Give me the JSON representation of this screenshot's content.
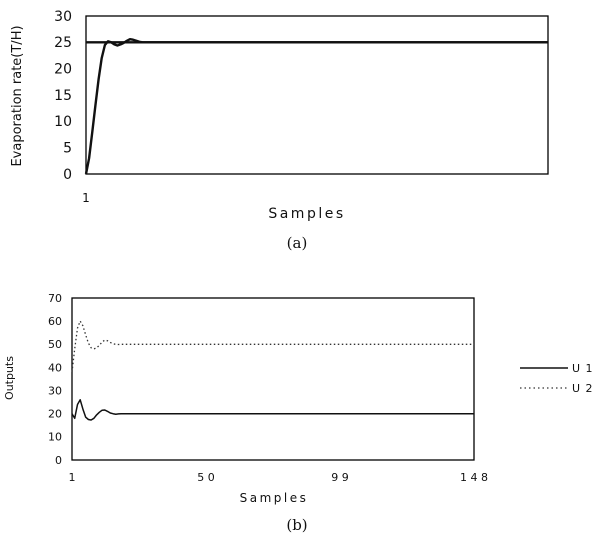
{
  "chart_data": [
    {
      "panel": "(a)",
      "type": "line",
      "xlabel": "Samples",
      "ylabel": "Evaporation rate(T/H)",
      "x_tick_labels": [
        "1"
      ],
      "y_ticks": [
        0,
        5,
        10,
        15,
        20,
        25,
        30
      ],
      "ylim": [
        0,
        30
      ],
      "xlim": [
        1,
        148
      ],
      "grid": false,
      "series": [
        {
          "color": "#111111",
          "style": "solid",
          "x": [
            1,
            2,
            3,
            4,
            5,
            6,
            7,
            8,
            9,
            10,
            11,
            12,
            13,
            14,
            15,
            16,
            17,
            18,
            19,
            20,
            21,
            22,
            23,
            25,
            28,
            32,
            148
          ],
          "values": [
            0,
            3,
            8,
            13,
            18,
            22,
            24.5,
            25.2,
            25,
            24.6,
            24.4,
            24.6,
            24.9,
            25.3,
            25.6,
            25.5,
            25.3,
            25.1,
            25,
            25,
            25,
            25,
            25,
            25,
            25,
            25,
            25
          ]
        },
        {
          "color": "#111111",
          "style": "solid",
          "x": [
            1,
            148
          ],
          "values": [
            25,
            25
          ]
        }
      ]
    },
    {
      "panel": "(b)",
      "type": "line",
      "xlabel": "Samples",
      "ylabel": "Outputs",
      "x_ticks": [
        1,
        50,
        99,
        148
      ],
      "x_tick_labels": [
        "1",
        "5 0",
        "9 9",
        "1 4 8"
      ],
      "y_ticks": [
        0,
        10,
        20,
        30,
        40,
        50,
        60,
        70
      ],
      "ylim": [
        0,
        70
      ],
      "xlim": [
        1,
        148
      ],
      "grid": false,
      "legend": "right",
      "series": [
        {
          "name": "U 1",
          "color": "#111111",
          "style": "solid",
          "x": [
            1,
            2,
            3,
            4,
            5,
            6,
            7,
            8,
            9,
            10,
            11,
            12,
            13,
            14,
            15,
            16,
            17,
            18,
            19,
            20,
            22,
            25,
            30,
            148
          ],
          "values": [
            20,
            18,
            24,
            26,
            22,
            18.5,
            17.5,
            17.3,
            18,
            19.5,
            20.6,
            21.5,
            21.6,
            21,
            20.3,
            20,
            19.8,
            19.9,
            20,
            20,
            20,
            20,
            20,
            20
          ]
        },
        {
          "name": "U 2",
          "color": "#333333",
          "style": "dotted",
          "x": [
            1,
            2,
            3,
            4,
            5,
            6,
            7,
            8,
            9,
            10,
            11,
            12,
            13,
            14,
            15,
            16,
            17,
            18,
            19,
            20,
            22,
            25,
            30,
            148
          ],
          "values": [
            38,
            48,
            57,
            60,
            58,
            54,
            50.5,
            48.5,
            48,
            48.5,
            49.5,
            51,
            51.8,
            51.5,
            50.8,
            50.2,
            50,
            49.9,
            50,
            50,
            50,
            50,
            50,
            50
          ]
        }
      ]
    }
  ],
  "captions": {
    "a": "(a)",
    "b": "(b)"
  }
}
